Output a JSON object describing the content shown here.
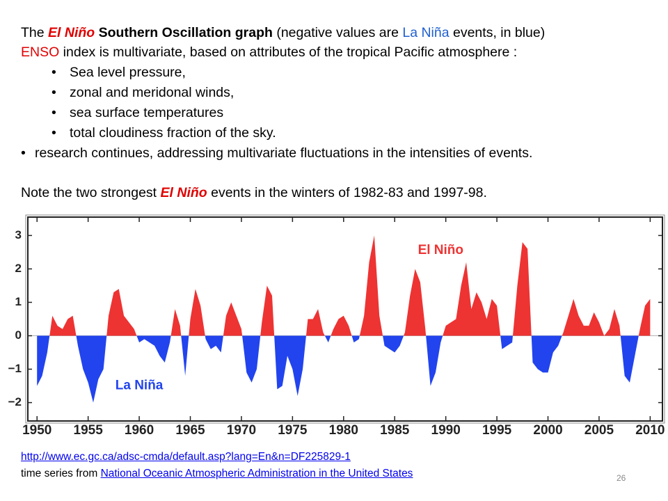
{
  "intro": {
    "line1": [
      "The ",
      "El Niño",
      " Southern Oscillation graph",
      " (negative values are ",
      "La Niña",
      " events, in blue)"
    ],
    "line2": [
      "ENSO",
      " index is multivariate, based on attributes of the tropical Pacific atmosphere :"
    ],
    "bullets": [
      "Sea level pressure,",
      "zonal and meridonal winds,",
      "sea surface temperatures",
      "total cloudiness fraction of the sky."
    ],
    "research": "research continues, addressing multivariate fluctuations in the intensities of events.",
    "note": [
      "Note the two strongest ",
      "El Niño",
      " events in the winters of 1982-83 and 1997-98."
    ]
  },
  "chart_data": {
    "type": "area",
    "positive_color": "#ee3333",
    "negative_color": "#2244ee",
    "x": [
      1950,
      1950.5,
      1951,
      1951.5,
      1952,
      1952.5,
      1953,
      1953.5,
      1954,
      1954.5,
      1955,
      1955.5,
      1956,
      1956.5,
      1957,
      1957.5,
      1958,
      1958.5,
      1959,
      1959.5,
      1960,
      1960.5,
      1961,
      1961.5,
      1962,
      1962.5,
      1963,
      1963.5,
      1964,
      1964.5,
      1965,
      1965.5,
      1966,
      1966.5,
      1967,
      1967.5,
      1968,
      1968.5,
      1969,
      1969.5,
      1970,
      1970.5,
      1971,
      1971.5,
      1972,
      1972.5,
      1973,
      1973.5,
      1974,
      1974.5,
      1975,
      1975.5,
      1976,
      1976.5,
      1977,
      1977.5,
      1978,
      1978.5,
      1979,
      1979.5,
      1980,
      1980.5,
      1981,
      1981.5,
      1982,
      1982.5,
      1983,
      1983.5,
      1984,
      1984.5,
      1985,
      1985.5,
      1986,
      1986.5,
      1987,
      1987.5,
      1988,
      1988.5,
      1989,
      1989.5,
      1990,
      1990.5,
      1991,
      1991.5,
      1992,
      1992.5,
      1993,
      1993.5,
      1994,
      1994.5,
      1995,
      1995.5,
      1996,
      1996.5,
      1997,
      1997.5,
      1998,
      1998.5,
      1999,
      1999.5,
      2000,
      2000.5,
      2001,
      2001.5,
      2002,
      2002.5,
      2003,
      2003.5,
      2004,
      2004.5,
      2005,
      2005.5,
      2006,
      2006.5,
      2007,
      2007.5,
      2008,
      2008.5,
      2009,
      2009.5,
      2010
    ],
    "values": [
      -1.5,
      -1.2,
      -0.5,
      0.6,
      0.3,
      0.2,
      0.5,
      0.6,
      -0.3,
      -1.0,
      -1.4,
      -2.0,
      -1.3,
      -1.0,
      0.6,
      1.3,
      1.4,
      0.6,
      0.4,
      0.2,
      -0.2,
      -0.1,
      -0.2,
      -0.3,
      -0.6,
      -0.8,
      -0.2,
      0.8,
      0.3,
      -1.2,
      0.5,
      1.4,
      0.9,
      -0.1,
      -0.4,
      -0.3,
      -0.5,
      0.6,
      1.0,
      0.6,
      0.2,
      -1.1,
      -1.4,
      -1.0,
      0.4,
      1.5,
      1.2,
      -1.6,
      -1.5,
      -0.6,
      -1.0,
      -1.8,
      -1.0,
      0.5,
      0.5,
      0.8,
      0.1,
      -0.2,
      0.2,
      0.5,
      0.6,
      0.3,
      -0.2,
      -0.1,
      0.6,
      2.2,
      3.0,
      0.6,
      -0.3,
      -0.4,
      -0.5,
      -0.3,
      0.1,
      1.2,
      2.0,
      1.6,
      0.2,
      -1.5,
      -1.1,
      -0.2,
      0.3,
      0.4,
      0.5,
      1.5,
      2.2,
      0.8,
      1.3,
      1.0,
      0.5,
      1.1,
      0.9,
      -0.4,
      -0.3,
      -0.2,
      1.5,
      2.8,
      2.6,
      -0.8,
      -1.0,
      -1.1,
      -1.1,
      -0.5,
      -0.3,
      0.1,
      0.6,
      1.1,
      0.6,
      0.3,
      0.3,
      0.7,
      0.4,
      0.0,
      0.2,
      0.8,
      0.3,
      -1.2,
      -1.4,
      -0.6,
      0.2,
      0.9,
      1.1
    ],
    "xlim": [
      1949.1,
      2011.2
    ],
    "ylim": [
      -2.55,
      3.55
    ],
    "xticks": [
      1950,
      1955,
      1960,
      1965,
      1970,
      1975,
      1980,
      1985,
      1990,
      1995,
      2000,
      2005,
      2010
    ],
    "yticks": [
      {
        "value": -2,
        "label": "−2"
      },
      {
        "value": -1,
        "label": "−1"
      },
      0,
      1,
      2,
      3
    ],
    "annotations": [
      {
        "text": "El Niño",
        "x": 1989.5,
        "y": 2.55
      },
      {
        "text": "La Niña",
        "x": 1960,
        "y": -1.5
      }
    ]
  },
  "footer": {
    "link1": "http://www.ec.gc.ca/adsc-cmda/default.asp?lang=En&n=DF225829-1",
    "source": "time series from ",
    "link2": "National Oceanic Atmospheric Administration in the United States",
    "page": "26"
  }
}
